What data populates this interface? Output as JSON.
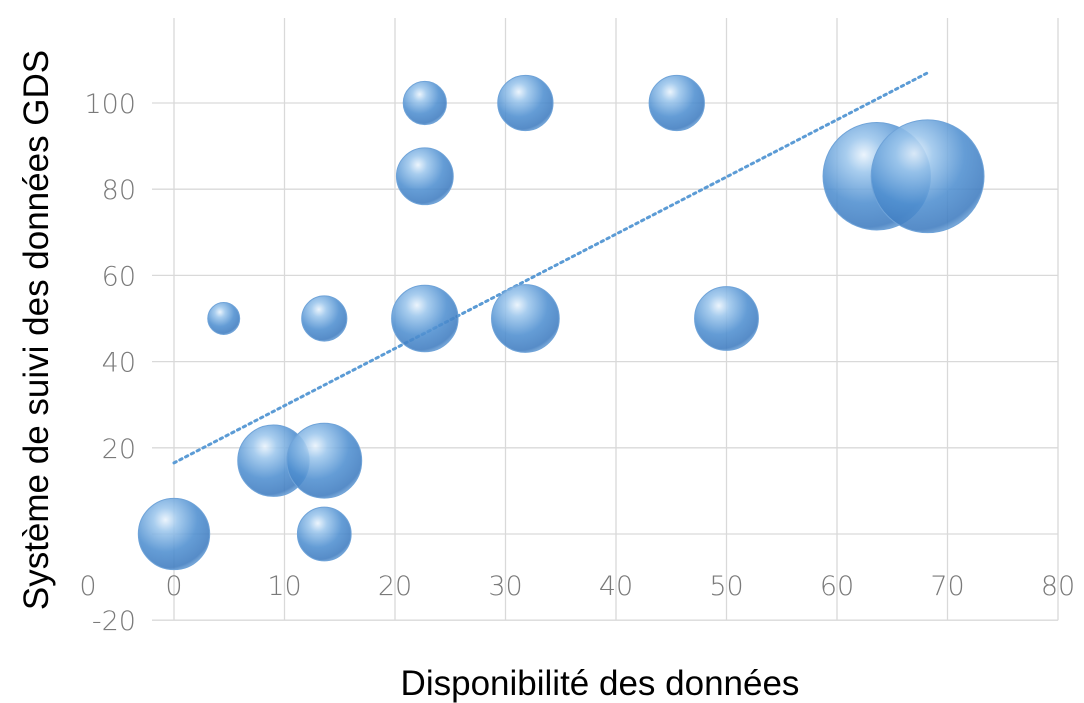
{
  "chart_data": {
    "type": "bubble",
    "xlabel": "Disponibilité des données",
    "ylabel": "Système de suivi des données GDS",
    "xlim": [
      0,
      80
    ],
    "ylim": [
      -20,
      120
    ],
    "x_ticks": [
      "0",
      "10",
      "20",
      "30",
      "40",
      "50",
      "60",
      "70",
      "80"
    ],
    "y_ticks": [
      "-20",
      "20",
      "40",
      "60",
      "80",
      "100"
    ],
    "grid": true,
    "bubble_color": "#5b9bd5",
    "series": [
      {
        "points": [
          {
            "x": 0,
            "y": 0,
            "size": 3
          },
          {
            "x": 4.5,
            "y": 50,
            "size": 0.6
          },
          {
            "x": 9,
            "y": 17,
            "size": 3
          },
          {
            "x": 13.6,
            "y": 17,
            "size": 3.3
          },
          {
            "x": 13.6,
            "y": 0,
            "size": 1.7
          },
          {
            "x": 13.6,
            "y": 50,
            "size": 1.2
          },
          {
            "x": 22.7,
            "y": 100,
            "size": 1.1
          },
          {
            "x": 22.7,
            "y": 83,
            "size": 1.9
          },
          {
            "x": 22.7,
            "y": 50,
            "size": 2.6
          },
          {
            "x": 31.8,
            "y": 100,
            "size": 1.8
          },
          {
            "x": 31.8,
            "y": 50,
            "size": 2.7
          },
          {
            "x": 45.5,
            "y": 100,
            "size": 1.8
          },
          {
            "x": 50,
            "y": 50,
            "size": 2.4
          },
          {
            "x": 63.6,
            "y": 83,
            "size": 6.8
          },
          {
            "x": 68.2,
            "y": 83,
            "size": 7.5
          }
        ]
      }
    ],
    "trendline": {
      "type": "linear",
      "style": "dotted",
      "x": [
        0,
        68.2
      ],
      "y": [
        16.5,
        107
      ]
    }
  }
}
